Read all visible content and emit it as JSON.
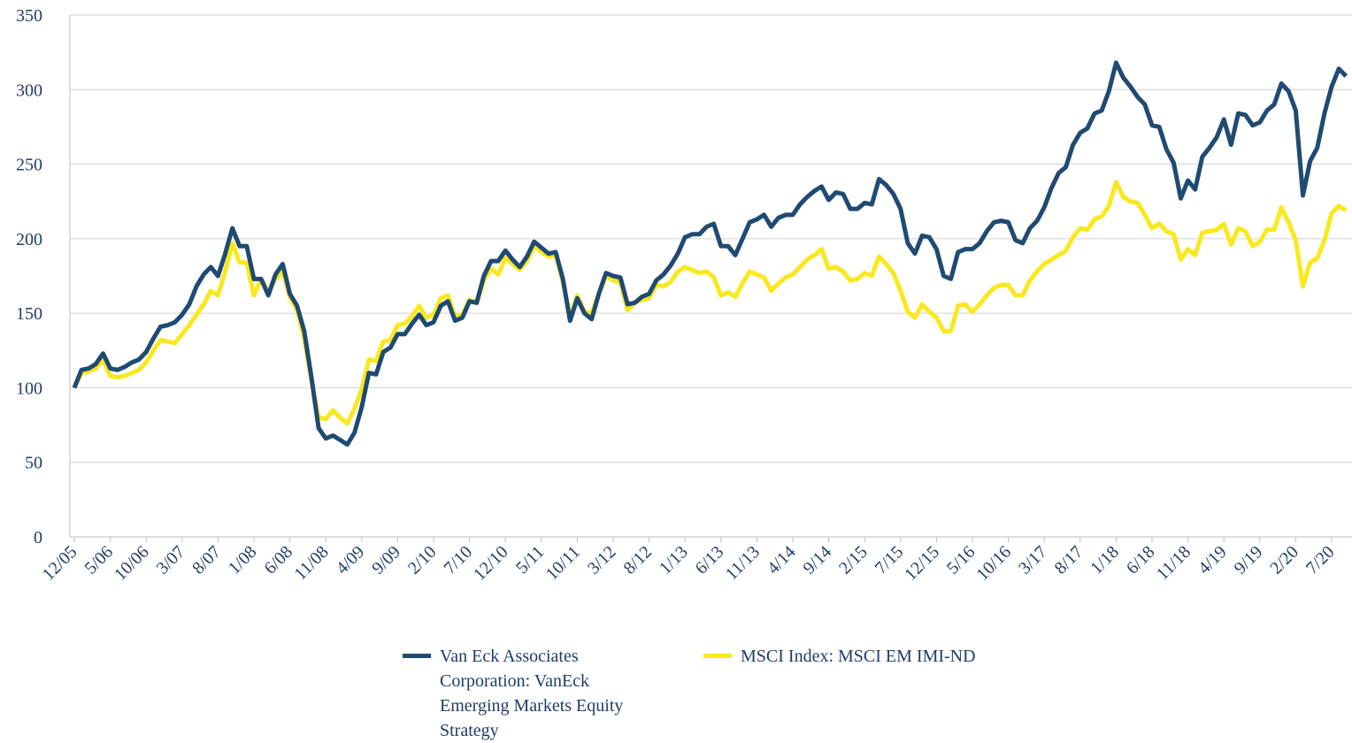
{
  "chart_data": {
    "type": "line",
    "categories": [
      "12/05",
      null,
      null,
      null,
      null,
      "5/06",
      null,
      null,
      null,
      null,
      "10/06",
      null,
      null,
      null,
      null,
      "3/07",
      null,
      null,
      null,
      null,
      "8/07",
      null,
      null,
      null,
      null,
      "1/08",
      null,
      null,
      null,
      null,
      "6/08",
      null,
      null,
      null,
      null,
      "11/08",
      null,
      null,
      null,
      null,
      "4/09",
      null,
      null,
      null,
      null,
      "9/09",
      null,
      null,
      null,
      null,
      "2/10",
      null,
      null,
      null,
      null,
      "7/10",
      null,
      null,
      null,
      null,
      "12/10",
      null,
      null,
      null,
      null,
      "5/11",
      null,
      null,
      null,
      null,
      "10/11",
      null,
      null,
      null,
      null,
      "3/12",
      null,
      null,
      null,
      null,
      "8/12",
      null,
      null,
      null,
      null,
      "1/13",
      null,
      null,
      null,
      null,
      "6/13",
      null,
      null,
      null,
      null,
      "11/13",
      null,
      null,
      null,
      null,
      "4/14",
      null,
      null,
      null,
      null,
      "9/14",
      null,
      null,
      null,
      null,
      "2/15",
      null,
      null,
      null,
      null,
      "7/15",
      null,
      null,
      null,
      null,
      "12/15",
      null,
      null,
      null,
      null,
      "5/16",
      null,
      null,
      null,
      null,
      "10/16",
      null,
      null,
      null,
      null,
      "3/17",
      null,
      null,
      null,
      null,
      "8/17",
      null,
      null,
      null,
      null,
      "1/18",
      null,
      null,
      null,
      null,
      "6/18",
      null,
      null,
      null,
      null,
      "11/18",
      null,
      null,
      null,
      null,
      "4/19",
      null,
      null,
      null,
      null,
      "9/19",
      null,
      null,
      null,
      null,
      "2/20",
      null,
      null,
      null,
      null,
      "7/20",
      null,
      null
    ],
    "series": [
      {
        "name": "Van Eck Associates Corporation: VanEck Emerging Markets Equity Strategy",
        "color": "#1f4a72",
        "values": [
          100,
          112,
          113,
          116,
          123,
          113,
          112,
          114,
          117,
          119,
          124,
          133,
          141,
          142,
          144,
          149,
          156,
          168,
          176,
          181,
          175,
          190,
          207,
          195,
          195,
          173,
          173,
          162,
          176,
          183,
          163,
          155,
          138,
          107,
          73,
          66,
          68,
          65,
          62,
          70,
          87,
          110,
          109,
          124,
          127,
          136,
          136,
          143,
          149,
          142,
          144,
          155,
          158,
          145,
          147,
          158,
          157,
          175,
          185,
          185,
          192,
          186,
          181,
          188,
          198,
          194,
          190,
          191,
          173,
          145,
          160,
          150,
          146,
          163,
          177,
          175,
          174,
          156,
          157,
          161,
          163,
          172,
          176,
          182,
          190,
          201,
          203,
          203,
          208,
          210,
          195,
          195,
          189,
          200,
          211,
          213,
          216,
          208,
          214,
          216,
          216,
          223,
          228,
          232,
          235,
          226,
          231,
          230,
          220,
          220,
          224,
          223,
          240,
          236,
          230,
          220,
          197,
          190,
          202,
          201,
          193,
          175,
          173,
          191,
          193,
          193,
          197,
          205,
          211,
          212,
          211,
          199,
          197,
          207,
          212,
          221,
          234,
          244,
          248,
          263,
          271,
          274,
          284,
          286,
          299,
          318,
          308,
          302,
          295,
          290,
          276,
          275,
          260,
          251,
          227,
          239,
          233,
          255,
          261,
          268,
          280,
          263,
          284,
          283,
          276,
          278,
          286,
          290,
          304,
          299,
          286,
          229,
          252,
          261,
          284,
          302,
          314,
          309
        ]
      },
      {
        "name": "MSCI Index: MSCI EM IMI-ND",
        "color": "#fae81e",
        "values": [
          100,
          110,
          111,
          113,
          119,
          108,
          107,
          108,
          110,
          112,
          117,
          125,
          132,
          131,
          130,
          136,
          142,
          149,
          156,
          165,
          162,
          178,
          197,
          184,
          184,
          162,
          173,
          164,
          173,
          178,
          161,
          152,
          133,
          105,
          80,
          79,
          85,
          80,
          76,
          86,
          99,
          119,
          118,
          131,
          132,
          142,
          143,
          148,
          155,
          147,
          149,
          160,
          162,
          148,
          149,
          159,
          157,
          172,
          180,
          176,
          187,
          183,
          179,
          185,
          195,
          191,
          188,
          189,
          171,
          148,
          162,
          151,
          150,
          163,
          175,
          172,
          171,
          152,
          157,
          159,
          160,
          169,
          168,
          171,
          178,
          181,
          179,
          177,
          178,
          174,
          162,
          164,
          161,
          170,
          178,
          176,
          174,
          165,
          170,
          174,
          176,
          181,
          186,
          189,
          193,
          180,
          181,
          178,
          172,
          173,
          177,
          175,
          188,
          183,
          177,
          165,
          151,
          147,
          156,
          151,
          147,
          138,
          138,
          155,
          156,
          151,
          156,
          162,
          167,
          169,
          169,
          162,
          162,
          172,
          178,
          183,
          186,
          189,
          192,
          201,
          207,
          206,
          213,
          215,
          222,
          238,
          228,
          225,
          224,
          216,
          207,
          210,
          205,
          203,
          186,
          193,
          189,
          204,
          205,
          206,
          210,
          196,
          207,
          205,
          195,
          198,
          206,
          206,
          221,
          211,
          199,
          168,
          184,
          187,
          199,
          217,
          222,
          219
        ]
      }
    ],
    "ylim": [
      0,
      350
    ],
    "yticks": [
      0,
      50,
      100,
      150,
      200,
      250,
      300,
      350
    ],
    "grid": true,
    "legend": "bottom"
  }
}
